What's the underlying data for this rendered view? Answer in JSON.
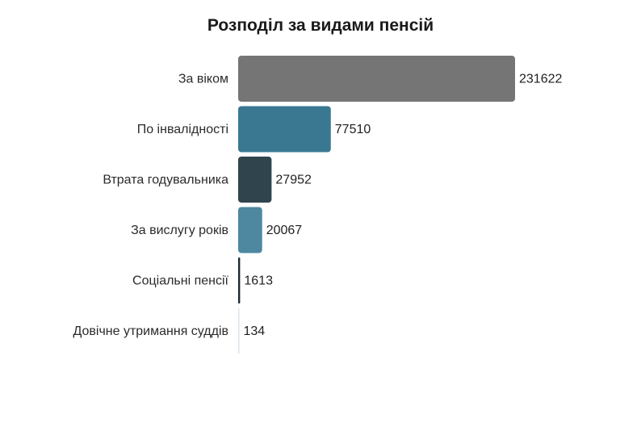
{
  "chart_data": {
    "type": "bar",
    "orientation": "horizontal",
    "title": "Розподіл за видами пенсій",
    "categories": [
      "За віком",
      "По інвалідності",
      "Втрата годувальника",
      "За вислугу років",
      "Соціальні пенсії",
      "Довічне утримання суддів"
    ],
    "values": [
      231622,
      77510,
      27952,
      20067,
      1613,
      134
    ],
    "value_labels": [
      "231622",
      "77510",
      "27952",
      "20067",
      "1613",
      "134"
    ],
    "colors": [
      "#757575",
      "#3a7891",
      "#2f444d",
      "#4e87a0",
      "#1b2a30",
      "#dde5e8"
    ],
    "xlim": [
      0,
      231622
    ],
    "grid": false,
    "legend": "none"
  }
}
